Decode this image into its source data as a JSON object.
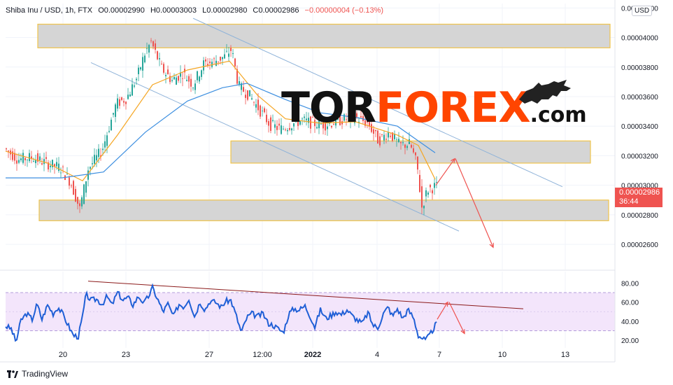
{
  "header": {
    "symbol": "Shiba Inu / USD, 1h, FTX",
    "o_label": "O",
    "o_value": "0.00002990",
    "h_label": "H",
    "h_value": "0.00003003",
    "l_label": "L",
    "l_value": "0.00002980",
    "c_label": "C",
    "c_value": "0.00002986",
    "change": "−0.00000004 (−0.13%)"
  },
  "currency_button": "USD",
  "last_price": {
    "value": "0.00002986",
    "countdown": "36:44"
  },
  "watermark": {
    "part1": "TOR",
    "part2": "FOREX",
    "part3": ".com"
  },
  "branding": "TradingView",
  "colors": {
    "candle_up": "#26a69a",
    "candle_down": "#ef5350",
    "fast_ma": "#f5a623",
    "slow_ma": "#3d8fe0",
    "rsi_line": "#1f5fd6",
    "rsi_band": "#f3e5fb",
    "forecast_arrow": "#ef5350",
    "tag": "#ef5350",
    "brand_accent": "#ff4500"
  },
  "chart_data": [
    {
      "type": "candlestick",
      "title": "",
      "x_ticks": [
        "20",
        "23",
        "27",
        "12:00",
        "2022",
        "4",
        "7",
        "10",
        "13"
      ],
      "y_ticks": [
        "0.00002600",
        "0.00002800",
        "0.00003000",
        "0.00003200",
        "0.00003400",
        "0.00003600",
        "0.00003800",
        "0.00004000",
        "0.00004200"
      ],
      "ylim": [
        2.43e-05,
        4.23e-05
      ],
      "y_axis_side": "right",
      "grid": true,
      "series_price_path": [
        [
          0,
          3.25e-05
        ],
        [
          20,
          3.175e-05
        ],
        [
          40,
          3.19e-05
        ],
        [
          60,
          3.15e-05
        ],
        [
          80,
          3.12e-05
        ],
        [
          95,
          3.02e-05
        ],
        [
          108,
          2.84e-05
        ],
        [
          120,
          3.11e-05
        ],
        [
          140,
          3.24e-05
        ],
        [
          160,
          3.55e-05
        ],
        [
          175,
          3.59e-05
        ],
        [
          190,
          3.73e-05
        ],
        [
          200,
          3.88e-05
        ],
        [
          210,
          3.97e-05
        ],
        [
          225,
          3.79e-05
        ],
        [
          240,
          3.71e-05
        ],
        [
          255,
          3.76e-05
        ],
        [
          270,
          3.68e-05
        ],
        [
          285,
          3.82e-05
        ],
        [
          300,
          3.84e-05
        ],
        [
          315,
          3.87e-05
        ],
        [
          325,
          3.92e-05
        ],
        [
          335,
          3.67e-05
        ],
        [
          350,
          3.61e-05
        ],
        [
          365,
          3.51e-05
        ],
        [
          380,
          3.41e-05
        ],
        [
          395,
          3.38e-05
        ],
        [
          410,
          3.41e-05
        ],
        [
          425,
          3.44e-05
        ],
        [
          440,
          3.42e-05
        ],
        [
          460,
          3.41e-05
        ],
        [
          480,
          3.44e-05
        ],
        [
          500,
          3.46e-05
        ],
        [
          520,
          3.42e-05
        ],
        [
          535,
          3.3e-05
        ],
        [
          550,
          3.36e-05
        ],
        [
          565,
          3.27e-05
        ],
        [
          580,
          3.28e-05
        ],
        [
          590,
          3.14e-05
        ],
        [
          597,
          2.85e-05
        ],
        [
          605,
          2.97e-05
        ],
        [
          615,
          2.99e-05
        ]
      ],
      "moving_averages": [
        {
          "color": "fast",
          "points": [
            [
              0,
              3.23e-05
            ],
            [
              60,
              3.15e-05
            ],
            [
              110,
              3.03e-05
            ],
            [
              160,
              3.34e-05
            ],
            [
              210,
              3.68e-05
            ],
            [
              260,
              3.78e-05
            ],
            [
              320,
              3.84e-05
            ],
            [
              360,
              3.61e-05
            ],
            [
              400,
              3.45e-05
            ],
            [
              450,
              3.42e-05
            ],
            [
              500,
              3.43e-05
            ],
            [
              560,
              3.34e-05
            ],
            [
              590,
              3.27e-05
            ],
            [
              614,
              3.04e-05
            ]
          ]
        },
        {
          "color": "slow",
          "points": [
            [
              0,
              3.05e-05
            ],
            [
              80,
              3.05e-05
            ],
            [
              140,
              3.09e-05
            ],
            [
              200,
              3.36e-05
            ],
            [
              260,
              3.57e-05
            ],
            [
              310,
              3.66e-05
            ],
            [
              345,
              3.69e-05
            ],
            [
              400,
              3.58e-05
            ],
            [
              450,
              3.49e-05
            ],
            [
              500,
              3.46e-05
            ],
            [
              560,
              3.4e-05
            ],
            [
              614,
              3.22e-05
            ]
          ]
        }
      ],
      "zones": [
        {
          "from": 3.93e-05,
          "to": 4.09e-05
        },
        {
          "from": 3.15e-05,
          "to": 3.3e-05
        },
        {
          "from": 2.76e-05,
          "to": 2.9e-05
        }
      ],
      "trendlines": [
        {
          "from": [
            268,
            4.13e-05
          ],
          "to": [
            796,
            2.99e-05
          ]
        },
        {
          "from": [
            122,
            3.83e-05
          ],
          "to": [
            648,
            2.69e-05
          ]
        }
      ],
      "forecast": [
        {
          "from": [
            615,
            3e-05
          ],
          "to": [
            642,
            3.18e-05
          ]
        },
        {
          "from": [
            643,
            3.18e-05
          ],
          "to": [
            697,
            2.58e-05
          ]
        }
      ],
      "last_price": 2.986e-05
    },
    {
      "type": "line",
      "title": "",
      "y_ticks": [
        "20.00",
        "40.00",
        "60.00",
        "80.00"
      ],
      "ylim": [
        12,
        92
      ],
      "overbought": 70,
      "oversold": 30,
      "y_axis_side": "right",
      "series": [
        {
          "values": [
            [
              0,
              35
            ],
            [
              8,
              32
            ],
            [
              15,
              18
            ],
            [
              22,
              41
            ],
            [
              30,
              48
            ],
            [
              38,
              42
            ],
            [
              45,
              58
            ],
            [
              52,
              42
            ],
            [
              60,
              57
            ],
            [
              68,
              48
            ],
            [
              75,
              55
            ],
            [
              82,
              47
            ],
            [
              90,
              35
            ],
            [
              97,
              25
            ],
            [
              104,
              24
            ],
            [
              110,
              45
            ],
            [
              115,
              68
            ],
            [
              122,
              62
            ],
            [
              130,
              63
            ],
            [
              138,
              58
            ],
            [
              145,
              66
            ],
            [
              152,
              57
            ],
            [
              160,
              70
            ],
            [
              168,
              62
            ],
            [
              175,
              65
            ],
            [
              182,
              57
            ],
            [
              190,
              66
            ],
            [
              198,
              59
            ],
            [
              205,
              67
            ],
            [
              210,
              75
            ],
            [
              218,
              62
            ],
            [
              225,
              50
            ],
            [
              232,
              58
            ],
            [
              240,
              45
            ],
            [
              248,
              58
            ],
            [
              255,
              55
            ],
            [
              262,
              64
            ],
            [
              270,
              45
            ],
            [
              278,
              60
            ],
            [
              285,
              52
            ],
            [
              292,
              61
            ],
            [
              300,
              60
            ],
            [
              308,
              55
            ],
            [
              315,
              61
            ],
            [
              322,
              62
            ],
            [
              330,
              45
            ],
            [
              337,
              28
            ],
            [
              345,
              44
            ],
            [
              352,
              48
            ],
            [
              360,
              45
            ],
            [
              368,
              48
            ],
            [
              375,
              38
            ],
            [
              382,
              36
            ],
            [
              390,
              32
            ],
            [
              397,
              28
            ],
            [
              405,
              48
            ],
            [
              412,
              53
            ],
            [
              420,
              52
            ],
            [
              428,
              56
            ],
            [
              435,
              46
            ],
            [
              442,
              34
            ],
            [
              450,
              52
            ],
            [
              458,
              43
            ],
            [
              465,
              46
            ],
            [
              472,
              50
            ],
            [
              480,
              47
            ],
            [
              488,
              52
            ],
            [
              495,
              46
            ],
            [
              503,
              41
            ],
            [
              510,
              38
            ],
            [
              518,
              49
            ],
            [
              525,
              36
            ],
            [
              532,
              33
            ],
            [
              540,
              48
            ],
            [
              547,
              55
            ],
            [
              553,
              45
            ],
            [
              560,
              53
            ],
            [
              568,
              43
            ],
            [
              575,
              52
            ],
            [
              583,
              44
            ],
            [
              590,
              25
            ],
            [
              596,
              22
            ],
            [
              600,
              20
            ],
            [
              605,
              24
            ],
            [
              610,
              30
            ],
            [
              616,
              38
            ]
          ]
        }
      ],
      "trendlines": [
        {
          "from": [
            118,
            82
          ],
          "to": [
            740,
            53
          ]
        }
      ],
      "forecast": [
        {
          "from": [
            617,
            42
          ],
          "to": [
            632,
            60
          ]
        },
        {
          "from": [
            634,
            60
          ],
          "to": [
            656,
            27
          ]
        }
      ]
    }
  ]
}
